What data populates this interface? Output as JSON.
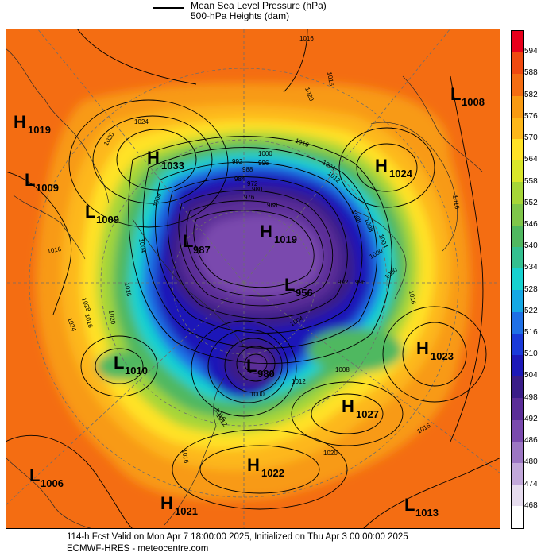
{
  "legend": {
    "line1": "Mean Sea Level Pressure (hPa)",
    "line2": "500-hPa Heights (dam)"
  },
  "footer": {
    "line1": "114-h Fcst Valid on Mon Apr  7 18:00:00 2025, Initialized on Thu Apr  3 00:00:00 2025",
    "line2": "ECMWF-HRES - meteocentre.com"
  },
  "scale": {
    "ticks": [
      "594",
      "588",
      "582",
      "576",
      "570",
      "564",
      "558",
      "552",
      "546",
      "540",
      "534",
      "528",
      "522",
      "516",
      "510",
      "504",
      "498",
      "492",
      "486",
      "480",
      "474",
      "468"
    ],
    "colors": [
      "#e8001b",
      "#f04a10",
      "#f46d12",
      "#f89a12",
      "#fdb71a",
      "#ffe227",
      "#d9e62a",
      "#a6d638",
      "#7fc64a",
      "#50b860",
      "#34c090",
      "#17d2d0",
      "#15a8e4",
      "#1f70e6",
      "#1a3ad9",
      "#1d19b8",
      "#3a1d88",
      "#5b2d98",
      "#7a4aae",
      "#9c76c3",
      "#c2a8da",
      "#e6dcee",
      "#ffffff"
    ]
  },
  "systems": [
    {
      "type": "H",
      "value": "1019"
    },
    {
      "type": "L",
      "value": "1009"
    },
    {
      "type": "L",
      "value": "1009"
    },
    {
      "type": "H",
      "value": "1033"
    },
    {
      "type": "L",
      "value": "987"
    },
    {
      "type": "H",
      "value": "1019"
    },
    {
      "type": "L",
      "value": "956"
    },
    {
      "type": "L",
      "value": "980"
    },
    {
      "type": "L",
      "value": "1010"
    },
    {
      "type": "H",
      "value": "1024"
    },
    {
      "type": "L",
      "value": "1008"
    },
    {
      "type": "H",
      "value": "1023"
    },
    {
      "type": "H",
      "value": "1027"
    },
    {
      "type": "H",
      "value": "1022"
    },
    {
      "type": "L",
      "value": "1006"
    },
    {
      "type": "H",
      "value": "1021"
    },
    {
      "type": "L",
      "value": "1013"
    }
  ],
  "contour_labels": [
    "1016",
    "1016",
    "1020",
    "1024",
    "1020",
    "1016",
    "1016",
    "1012",
    "1008",
    "1004",
    "1000",
    "996",
    "992",
    "988",
    "984",
    "980",
    "976",
    "972",
    "968",
    "1000",
    "1004",
    "1008",
    "1012",
    "1016",
    "1016",
    "1020",
    "1016",
    "1016",
    "1016",
    "1016",
    "1008",
    "1004",
    "1000",
    "996",
    "992",
    "1016",
    "1020",
    "1024",
    "1028",
    "1008",
    "1004",
    "1000",
    "1012"
  ]
}
